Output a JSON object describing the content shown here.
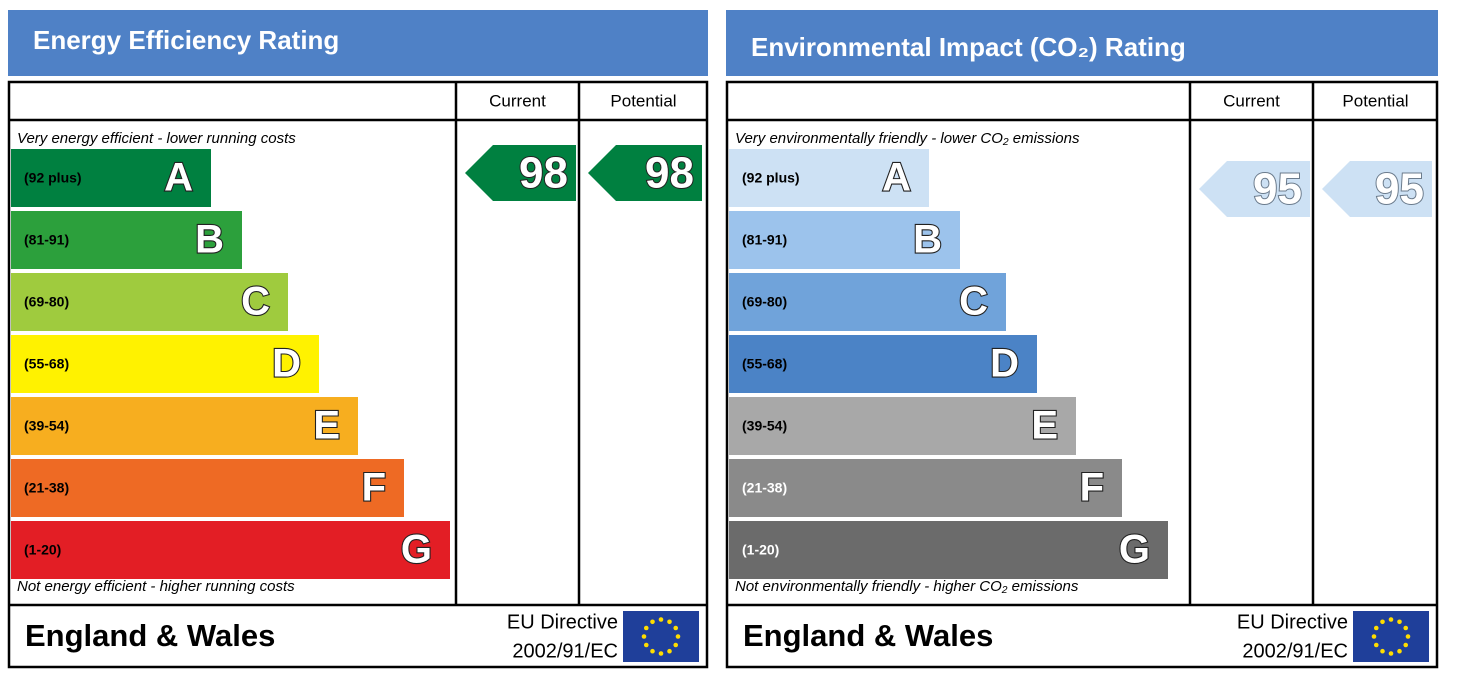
{
  "panels": [
    {
      "title": "Energy Efficiency Rating",
      "columns": [
        "Current",
        "Potential"
      ],
      "top_note": "Very energy efficient - lower running costs",
      "bottom_note": "Not energy efficient - higher running costs",
      "bands": [
        {
          "range": "(92 plus)",
          "letter": "A",
          "color": "#008040",
          "text_color": "#000000"
        },
        {
          "range": "(81-91)",
          "letter": "B",
          "color": "#2ca03c",
          "text_color": "#000000"
        },
        {
          "range": "(69-80)",
          "letter": "C",
          "color": "#9fcb3e",
          "text_color": "#000000"
        },
        {
          "range": "(55-68)",
          "letter": "D",
          "color": "#fff200",
          "text_color": "#000000"
        },
        {
          "range": "(39-54)",
          "letter": "E",
          "color": "#f7ae1f",
          "text_color": "#000000"
        },
        {
          "range": "(21-38)",
          "letter": "F",
          "color": "#ee6a24",
          "text_color": "#000000"
        },
        {
          "range": "(1-20)",
          "letter": "G",
          "color": "#e31e25",
          "text_color": "#000000"
        }
      ],
      "current": 98,
      "potential": 98,
      "footer": {
        "region": "England & Wales",
        "directive": "EU Directive",
        "code": "2002/91/EC"
      }
    },
    {
      "title": "Environmental Impact (CO₂) Rating",
      "columns": [
        "Current",
        "Potential"
      ],
      "top_note": "Very environmentally friendly - lower CO₂ emissions",
      "bottom_note": "Not environmentally friendly - higher CO₂ emissions",
      "bands": [
        {
          "range": "(92 plus)",
          "letter": "A",
          "color": "#cde1f4",
          "text_color": "#000000"
        },
        {
          "range": "(81-91)",
          "letter": "B",
          "color": "#9cc3ec",
          "text_color": "#000000"
        },
        {
          "range": "(69-80)",
          "letter": "C",
          "color": "#70a3da",
          "text_color": "#000000"
        },
        {
          "range": "(55-68)",
          "letter": "D",
          "color": "#4b83c6",
          "text_color": "#000000"
        },
        {
          "range": "(39-54)",
          "letter": "E",
          "color": "#a8a8a8",
          "text_color": "#000000"
        },
        {
          "range": "(21-38)",
          "letter": "F",
          "color": "#8a8a8a",
          "text_color": "#ffffff"
        },
        {
          "range": "(1-20)",
          "letter": "G",
          "color": "#6b6b6b",
          "text_color": "#ffffff"
        }
      ],
      "current": 95,
      "potential": 95,
      "footer": {
        "region": "England & Wales",
        "directive": "EU Directive",
        "code": "2002/91/EC"
      }
    }
  ]
}
